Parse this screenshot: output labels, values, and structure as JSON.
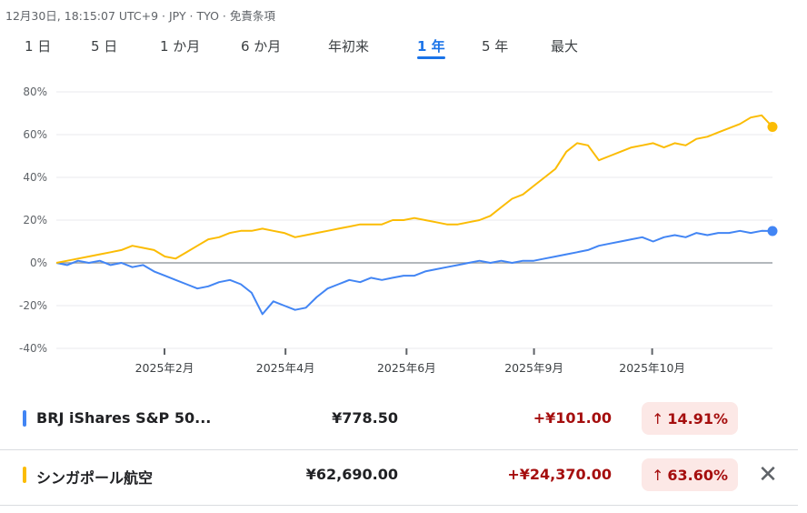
{
  "header": {
    "meta": "12月30日, 18:15:07 UTC+9 · JPY · TYO · 免責条項"
  },
  "ranges": [
    {
      "label": "1 日",
      "active": false
    },
    {
      "label": "5 日",
      "active": false
    },
    {
      "label": "1 か月",
      "active": false
    },
    {
      "label": "6 か月",
      "active": false
    },
    {
      "label": "年初来",
      "active": false
    },
    {
      "label": "1 年",
      "active": true
    },
    {
      "label": "5 年",
      "active": false
    },
    {
      "label": "最大",
      "active": false
    }
  ],
  "chart_data": {
    "type": "line",
    "yticks": [
      "80%",
      "60%",
      "40%",
      "20%",
      "0%",
      "-20%",
      "-40%"
    ],
    "ylim": [
      -40,
      80
    ],
    "xlabels": [
      "2025年2月",
      "2025年4月",
      "2025年6月",
      "2025年9月",
      "2025年10月"
    ],
    "series": [
      {
        "name": "BRJ iShares S&P 50...",
        "color": "#4285f4",
        "values": [
          0,
          -1,
          1,
          0,
          1,
          -1,
          0,
          -2,
          -1,
          -4,
          -6,
          -8,
          -10,
          -12,
          -11,
          -9,
          -8,
          -10,
          -14,
          -24,
          -18,
          -20,
          -22,
          -21,
          -16,
          -12,
          -10,
          -8,
          -9,
          -7,
          -8,
          -7,
          -6,
          -6,
          -4,
          -3,
          -2,
          -1,
          0,
          1,
          0,
          1,
          0,
          1,
          1,
          2,
          3,
          4,
          5,
          6,
          8,
          9,
          10,
          11,
          12,
          10,
          12,
          13,
          12,
          14,
          13,
          14,
          14,
          15,
          14,
          15,
          14.91
        ]
      },
      {
        "name": "シンガポール航空",
        "color": "#fbbc04",
        "values": [
          0,
          1,
          2,
          3,
          4,
          5,
          6,
          8,
          7,
          6,
          3,
          2,
          5,
          8,
          11,
          12,
          14,
          15,
          15,
          16,
          15,
          14,
          12,
          13,
          14,
          15,
          16,
          17,
          18,
          18,
          18,
          20,
          20,
          21,
          20,
          19,
          18,
          18,
          19,
          20,
          22,
          26,
          30,
          32,
          36,
          40,
          44,
          52,
          56,
          55,
          48,
          50,
          52,
          54,
          55,
          56,
          54,
          56,
          55,
          58,
          59,
          61,
          63,
          65,
          68,
          69,
          63.6
        ]
      }
    ]
  },
  "rows": [
    {
      "name": "BRJ iShares S&P 50...",
      "price": "¥778.50",
      "change": "+¥101.00",
      "pct": "14.91%",
      "color": "#4285f4"
    },
    {
      "name": "シンガポール航空",
      "price": "¥62,690.00",
      "change": "+¥24,370.00",
      "pct": "63.60%",
      "color": "#fbbc04"
    }
  ],
  "icons": {
    "pct_arrow": "arrow-up-icon",
    "close": "close-icon"
  },
  "symbols": {
    "arrow": "↑",
    "close": "✕"
  }
}
